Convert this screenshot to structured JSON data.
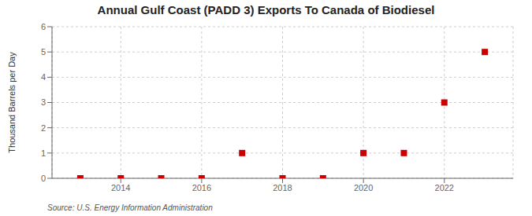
{
  "chart_data": {
    "type": "scatter",
    "title": "Annual Gulf Coast (PADD 3) Exports To Canada of Biodiesel",
    "ylabel": "Thousand Barrels per Day",
    "annotations": [
      "Source: U.S. Energy Information Administration"
    ],
    "x": [
      2013,
      2014,
      2015,
      2016,
      2017,
      2018,
      2019,
      2020,
      2021,
      2022,
      2023
    ],
    "values": [
      0.0,
      0.0,
      0.0,
      0.0,
      1.0,
      0.0,
      0.0,
      1.0,
      1.0,
      3.0,
      5.0
    ],
    "color": "#cc0000",
    "marker": "square",
    "xlim": [
      2012.3,
      2023.7
    ],
    "ylim": [
      0,
      6
    ],
    "xticks": [
      2014,
      2016,
      2018,
      2020,
      2022
    ],
    "yticks": [
      0,
      1,
      2,
      3,
      4,
      5,
      6
    ],
    "grid": true
  }
}
